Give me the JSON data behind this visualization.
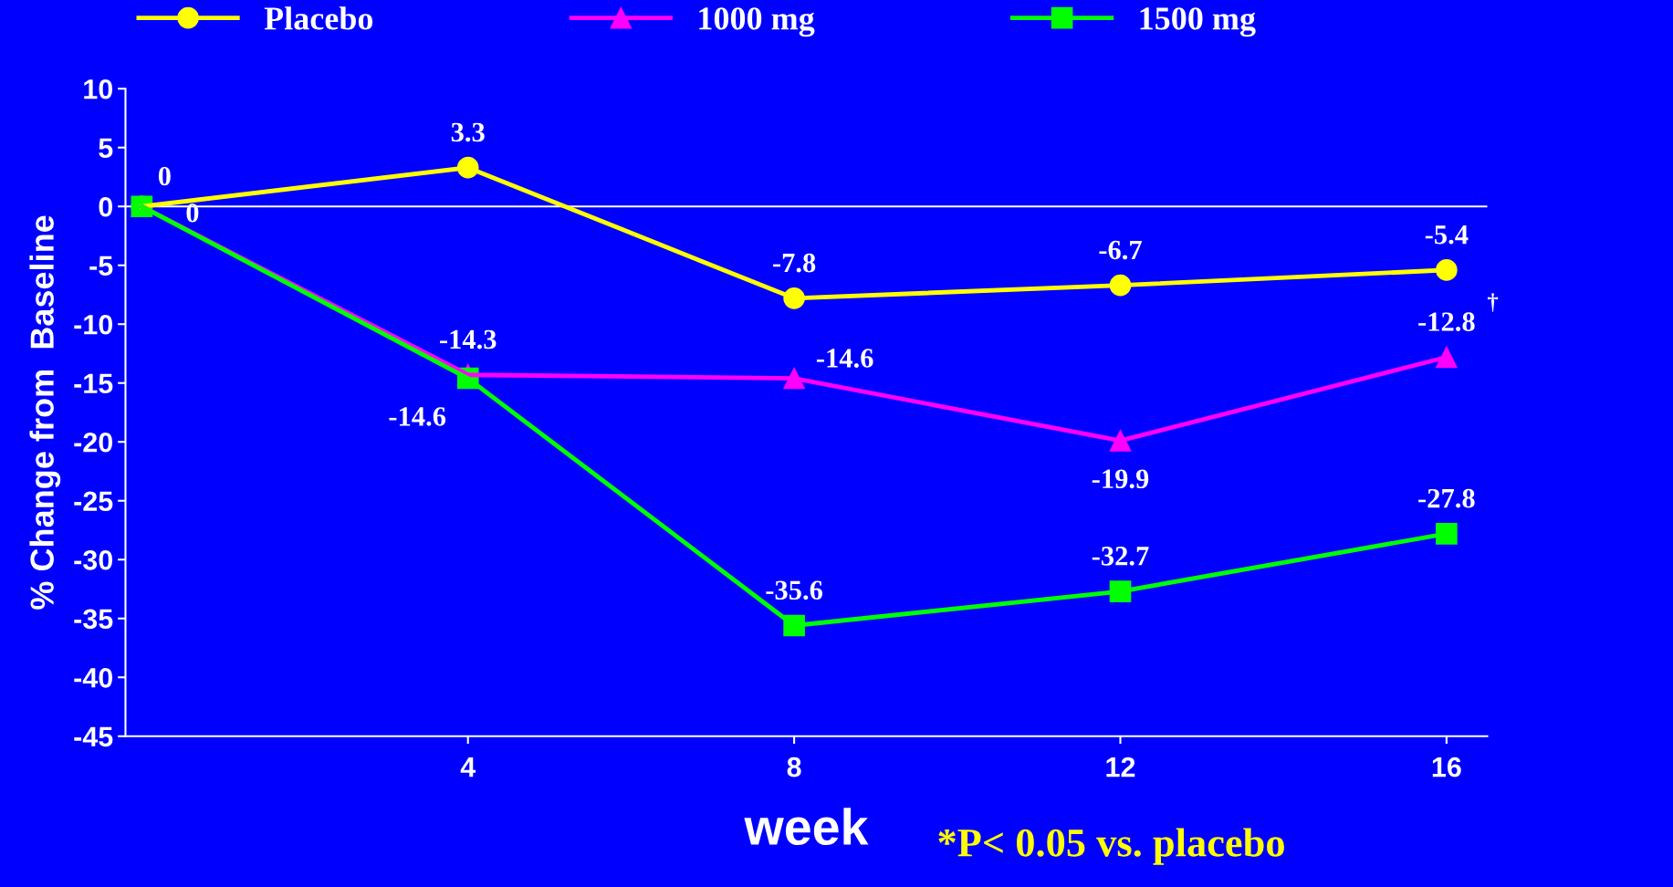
{
  "chart_data": {
    "type": "line",
    "xlabel": "week",
    "ylabel": "% Change from  Baseline",
    "x": [
      0,
      4,
      8,
      12,
      16
    ],
    "series": [
      {
        "name": "Placebo",
        "color": "#ffff00",
        "marker": "circle",
        "values": [
          0,
          3.3,
          -7.8,
          -6.7,
          -5.4
        ],
        "value_labels": [
          "0",
          "3.3",
          "-7.8",
          "-6.7",
          "-5.4"
        ]
      },
      {
        "name": "1000 mg",
        "color": "#ff00ff",
        "marker": "triangle",
        "values": [
          0,
          -14.3,
          -14.6,
          -19.9,
          -12.8
        ],
        "value_labels": [
          "0",
          "-14.3",
          "-14.6",
          "-19.9",
          "-12.8"
        ]
      },
      {
        "name": "1500 mg",
        "color": "#00ff00",
        "marker": "square",
        "values": [
          0,
          -14.6,
          -35.6,
          -32.7,
          -27.8
        ],
        "value_labels": [
          null,
          "-14.6",
          "-35.6",
          "-32.7",
          "-27.8"
        ]
      }
    ],
    "xlim": [
      -0.2,
      16.5
    ],
    "xticks": [
      4,
      8,
      12,
      16
    ],
    "ylim": [
      -45,
      10
    ],
    "yticks": [
      10,
      5,
      0,
      -5,
      -10,
      -15,
      -20,
      -25,
      -30,
      -35,
      -40,
      -45
    ],
    "ref_lines": [
      {
        "axis": "y",
        "value": 0,
        "color": "#ffffff"
      }
    ],
    "grid": false,
    "legend": "top",
    "annotations": [
      {
        "text": "†",
        "x": 16,
        "y": -12.8
      },
      "*P< 0.05 vs. placebo"
    ]
  }
}
